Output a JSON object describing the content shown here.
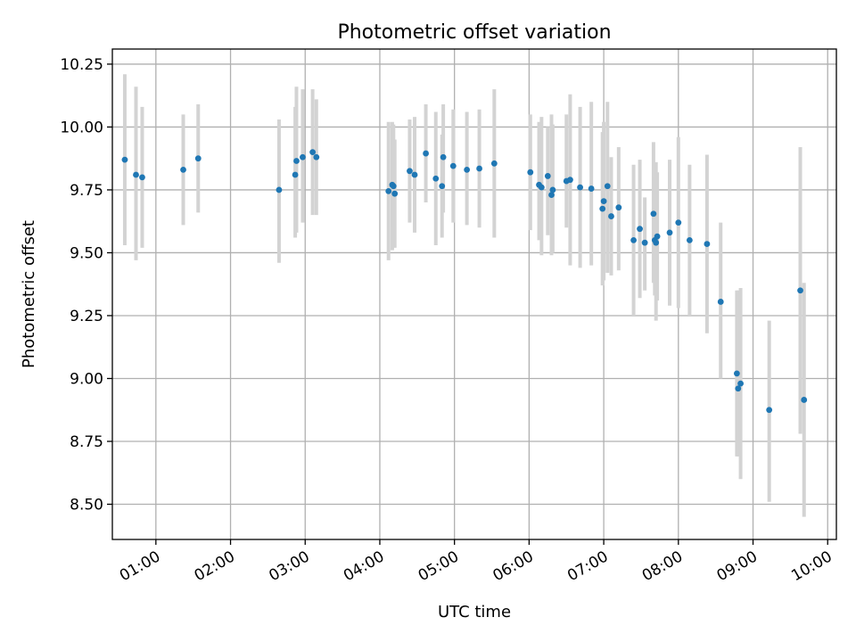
{
  "chart_data": {
    "type": "scatter",
    "title": "Photometric offset variation",
    "xlabel": "UTC time",
    "ylabel": "Photometric offset",
    "grid": true,
    "xlim": [
      "00:25",
      "10:07"
    ],
    "ylim": [
      8.36,
      10.31
    ],
    "x_ticks": [
      "01:00",
      "02:00",
      "03:00",
      "04:00",
      "05:00",
      "06:00",
      "07:00",
      "08:00",
      "09:00",
      "10:00"
    ],
    "y_ticks": [
      "8.50",
      "8.75",
      "9.00",
      "9.25",
      "9.50",
      "9.75",
      "10.00",
      "10.25"
    ],
    "colors": {
      "points": "#1f77b4",
      "error_bars": "#d3d3d3",
      "grid": "#b0b0b0"
    },
    "series": [
      {
        "x": [
          "00:35",
          "00:44",
          "00:49",
          "01:22",
          "01:34",
          "02:39",
          "02:52",
          "02:53",
          "02:58",
          "03:06",
          "03:09",
          "04:07",
          "04:10",
          "04:11",
          "04:12",
          "04:24",
          "04:28",
          "04:37",
          "04:45",
          "04:50",
          "04:51",
          "04:59",
          "05:10",
          "05:20",
          "05:32",
          "06:01",
          "06:08",
          "06:10",
          "06:15",
          "06:18",
          "06:19",
          "06:30",
          "06:33",
          "06:41",
          "06:50",
          "06:59",
          "07:00",
          "07:03",
          "07:06",
          "07:12",
          "07:24",
          "07:29",
          "07:33",
          "07:40",
          "07:41",
          "07:42",
          "07:43",
          "07:53",
          "08:00",
          "08:09",
          "08:23",
          "08:34",
          "08:47",
          "08:48",
          "08:50",
          "09:13",
          "09:38",
          "09:41"
        ],
        "y": [
          9.87,
          9.81,
          9.8,
          9.83,
          9.875,
          9.75,
          9.81,
          9.865,
          9.88,
          9.9,
          9.88,
          9.745,
          9.77,
          9.765,
          9.735,
          9.825,
          9.81,
          9.895,
          9.795,
          9.765,
          9.88,
          9.845,
          9.83,
          9.835,
          9.855,
          9.82,
          9.77,
          9.76,
          9.805,
          9.73,
          9.75,
          9.785,
          9.79,
          9.76,
          9.755,
          9.675,
          9.705,
          9.765,
          9.645,
          9.68,
          9.55,
          9.595,
          9.54,
          9.655,
          9.55,
          9.54,
          9.565,
          9.58,
          9.62,
          9.55,
          9.535,
          9.305,
          9.02,
          8.96,
          8.98,
          8.875,
          9.35,
          8.915
        ],
        "yerr_low": [
          9.53,
          9.47,
          9.52,
          9.61,
          9.66,
          9.46,
          9.56,
          9.58,
          9.62,
          9.65,
          9.65,
          9.47,
          9.51,
          9.6,
          9.52,
          9.62,
          9.58,
          9.7,
          9.53,
          9.56,
          9.66,
          9.62,
          9.61,
          9.6,
          9.56,
          9.59,
          9.55,
          9.49,
          9.57,
          9.49,
          9.5,
          9.6,
          9.45,
          9.44,
          9.45,
          9.37,
          9.39,
          9.42,
          9.41,
          9.43,
          9.25,
          9.32,
          9.35,
          9.38,
          9.33,
          9.23,
          9.31,
          9.29,
          9.28,
          9.25,
          9.18,
          9.0,
          8.69,
          8.69,
          8.6,
          8.51,
          8.78,
          8.45
        ],
        "yerr_high": [
          10.21,
          10.16,
          10.08,
          10.05,
          10.09,
          10.03,
          10.08,
          10.16,
          10.15,
          10.15,
          10.11,
          10.02,
          10.02,
          10.01,
          9.95,
          10.03,
          10.04,
          10.09,
          10.06,
          9.97,
          10.09,
          10.07,
          10.06,
          10.07,
          10.15,
          10.05,
          10.02,
          10.04,
          10.0,
          10.05,
          10.01,
          10.05,
          10.13,
          10.08,
          10.1,
          9.98,
          10.02,
          10.1,
          9.88,
          9.92,
          9.85,
          9.87,
          9.72,
          9.94,
          9.8,
          9.86,
          9.82,
          9.87,
          9.96,
          9.85,
          9.89,
          9.62,
          9.35,
          9.35,
          9.36,
          9.23,
          9.92,
          9.38
        ]
      }
    ]
  }
}
